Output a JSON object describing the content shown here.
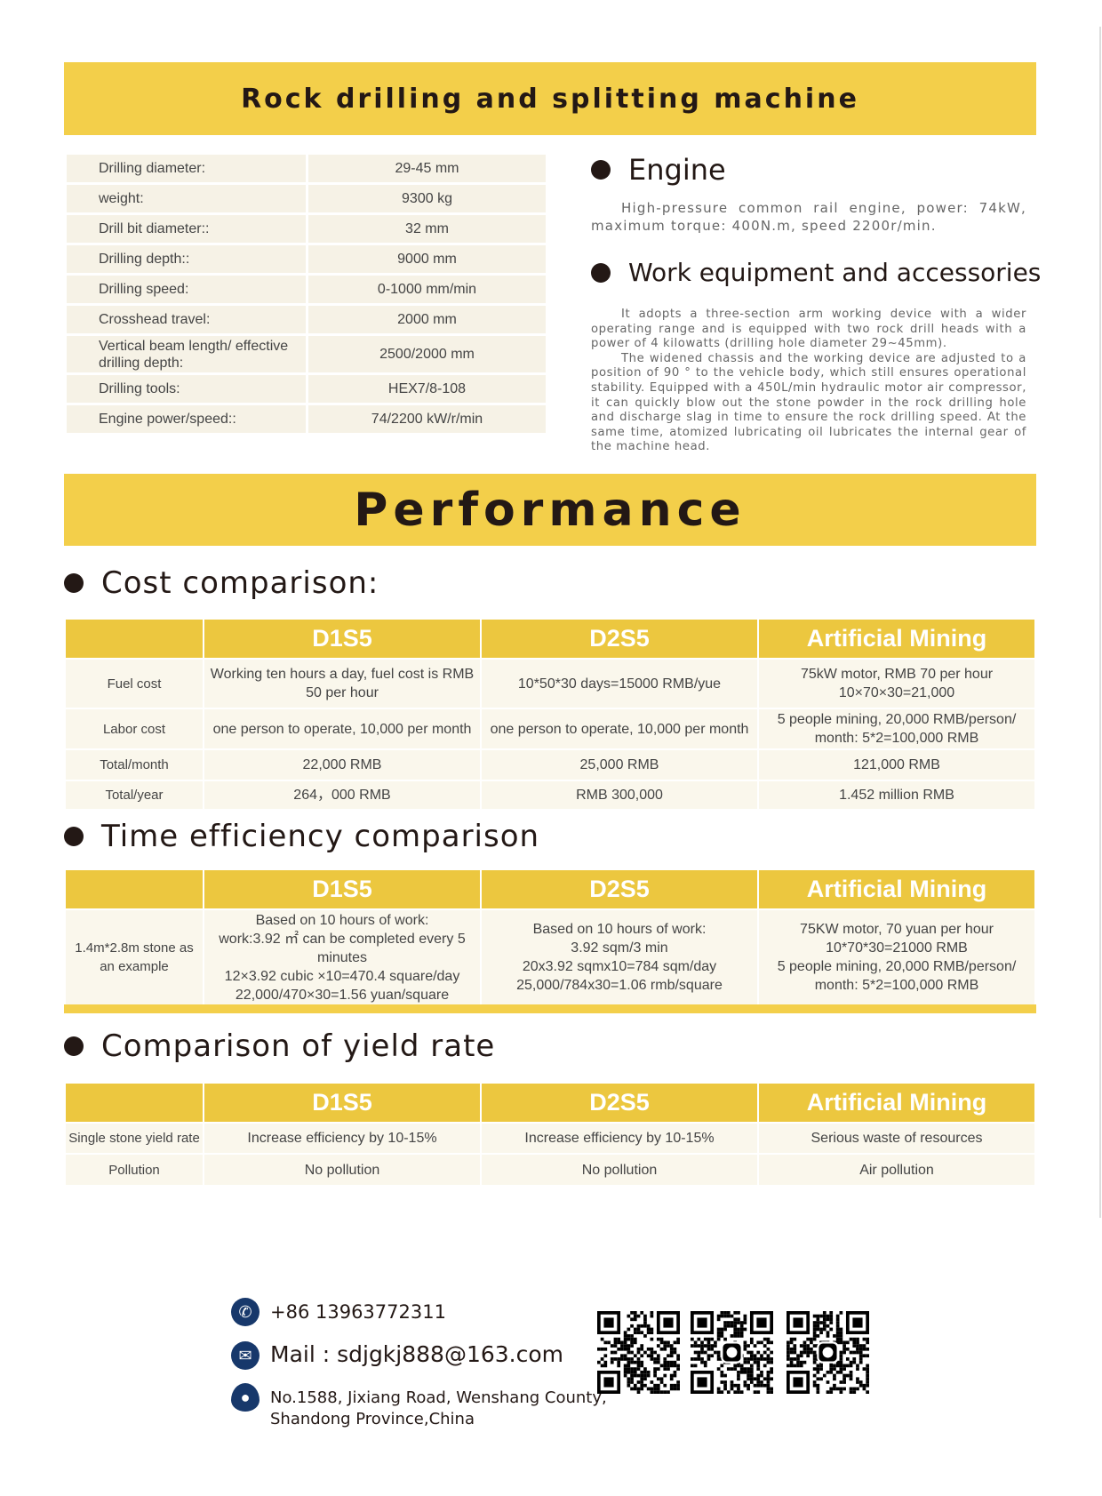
{
  "title": "Rock drilling and splitting machine",
  "specs": [
    {
      "k": "Drilling diameter:",
      "v": "29-45  mm"
    },
    {
      "k": "weight:",
      "v": "9300  kg"
    },
    {
      "k": "Drill bit diameter::",
      "v": "32  mm"
    },
    {
      "k": "Drilling depth::",
      "v": "9000  mm"
    },
    {
      "k": "Drilling speed:",
      "v": "0-1000  mm/min"
    },
    {
      "k": "Crosshead travel:",
      "v": "2000  mm"
    },
    {
      "k": "Vertical beam length/ effective drilling depth:",
      "v": "2500/2000  mm"
    },
    {
      "k": "Drilling tools:",
      "v": "HEX7/8-108"
    },
    {
      "k": "Engine power/speed::",
      "v": "74/2200  kW/r/min"
    }
  ],
  "engine": {
    "heading": "Engine",
    "text": "High-pressure common rail engine, power: 74kW, maximum torque: 400N.m, speed 2200r/min."
  },
  "work": {
    "heading": "Work equipment and accessories",
    "p1": "It adopts a three-section arm working device with a wider operating range and is equipped with two rock drill heads with a power of 4 kilowatts (drilling hole diameter 29~45mm).",
    "p2": "The widened chassis and the working device are adjusted to a position of 90 ° to the vehicle body, which still ensures operational stability. Equipped with a 450L/min hydraulic motor air compressor, it can quickly blow out the stone powder in the rock drilling hole and discharge slag in time to ensure the rock drilling speed. At the same time, atomized lubricating oil lubricates the internal gear of the machine head."
  },
  "performance": "Performance",
  "headers": [
    "",
    "D1S5",
    "D2S5",
    "Artificial Mining"
  ],
  "cost": {
    "heading": "Cost comparison:",
    "rows": [
      [
        "Fuel cost",
        "Working ten hours a day, fuel cost is RMB 50 per hour",
        "10*50*30 days=15000 RMB/yue",
        "75kW motor, RMB 70 per hour\n10×70×30=21,000"
      ],
      [
        "Labor cost",
        "one person to operate, 10,000 per month",
        "one person to operate, 10,000 per month",
        "5 people mining, 20,000 RMB/person/ month: 5*2=100,000 RMB"
      ],
      [
        "Total/month",
        "22,000 RMB",
        "25,000 RMB",
        "121,000 RMB"
      ],
      [
        "Total/year",
        "264，000 RMB",
        "RMB 300,000",
        "1.452 million RMB"
      ]
    ]
  },
  "time": {
    "heading": "Time efficiency comparison",
    "rows": [
      [
        "1.4m*2.8m stone as an example",
        "Based on 10 hours of work:\nwork:3.92 ㎡ can be completed every 5 minutes\n12×3.92 cubic ×10=470.4 square/day\n22,000/470×30=1.56 yuan/square",
        "Based on 10 hours of work:\n3.92 sqm/3 min\n20x3.92 sqmx10=784 sqm/day\n25,000/784x30=1.06 rmb/square",
        "75KW motor, 70 yuan per hour\n10*70*30=21000 RMB\n5 people mining, 20,000 RMB/person/ month: 5*2=100,000 RMB"
      ]
    ]
  },
  "yield": {
    "heading": "Comparison of yield rate",
    "rows": [
      [
        "Single stone yield rate",
        "Increase efficiency by 10-15%",
        "Increase efficiency by 10-15%",
        "Serious waste of resources"
      ],
      [
        "Pollution",
        "No pollution",
        "No pollution",
        "Air pollution"
      ]
    ]
  },
  "contact": {
    "phone": "+86 13963772311",
    "mail": "Mail : sdjgkj888@163.com",
    "address1": "No.1588, Jixiang Road, Wenshang County,",
    "address2": "Shandong Province,China"
  },
  "colors": {
    "banner": "#F3CF4A",
    "header": "#ECC73F",
    "cell": "#FAF7EC",
    "icon": "#17386B"
  }
}
